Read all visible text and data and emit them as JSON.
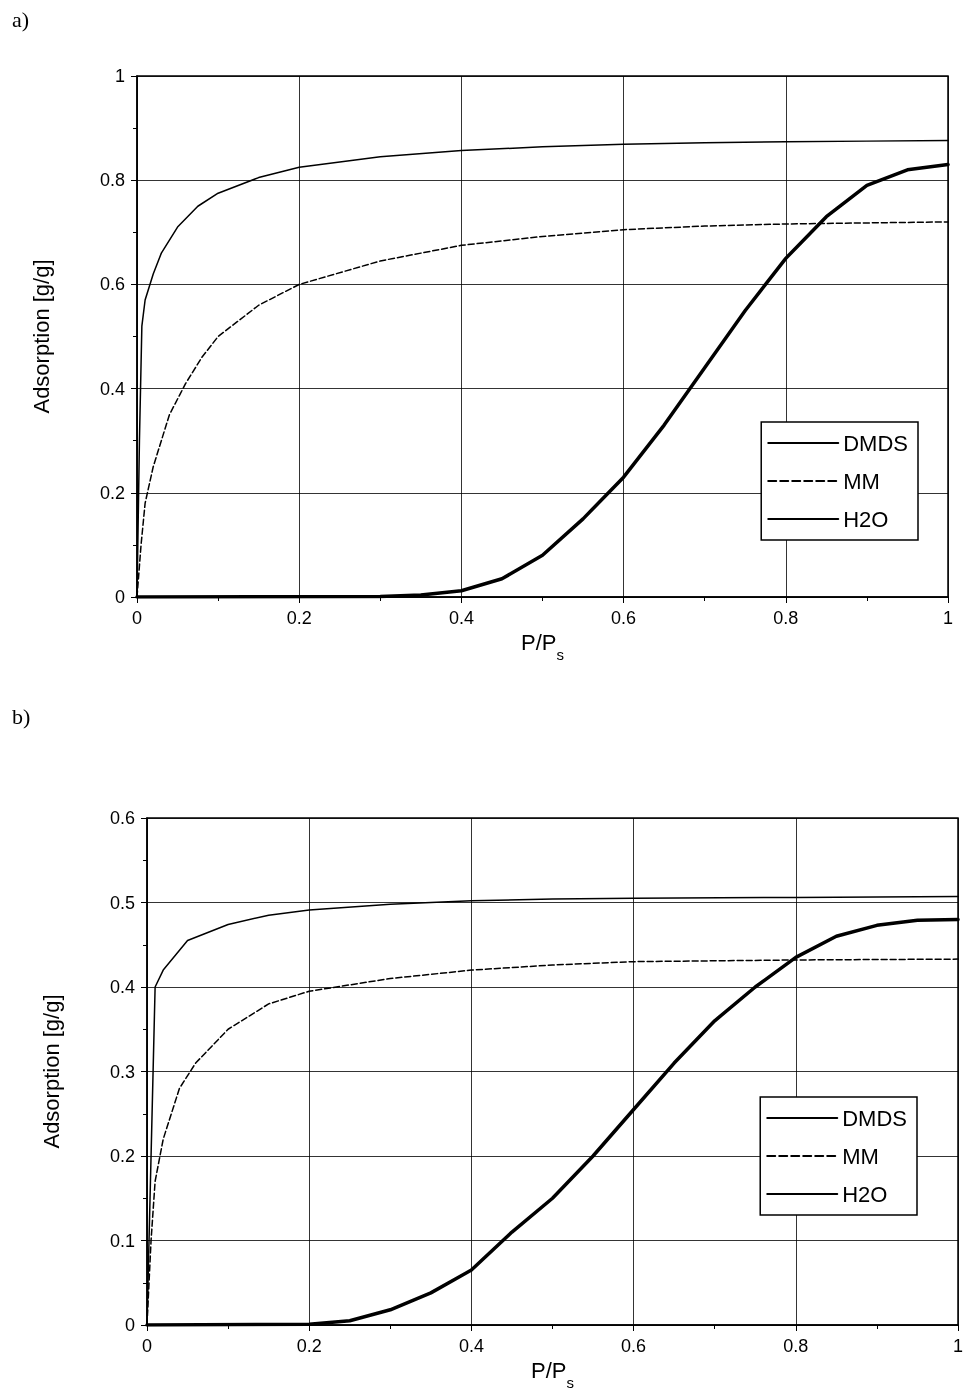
{
  "chart_data": [
    {
      "type": "line",
      "xlabel": "P/P$_{s}$",
      "ylabel": "Adsorption [g/g]",
      "annotations": [
        "a)"
      ],
      "xlim": [
        0,
        1
      ],
      "ylim": [
        0,
        1
      ],
      "xticks": [
        0,
        0.2,
        0.4,
        0.6,
        0.8,
        1
      ],
      "yticks": [
        0,
        0.2,
        0.4,
        0.6,
        0.8,
        1
      ],
      "grid": true,
      "legend": "bottom right",
      "marker": "none",
      "series": [
        {
          "name": "DMDS",
          "color": "#000000",
          "line_style": "solid",
          "x": [
            0,
            0.003,
            0.006,
            0.01,
            0.02,
            0.03,
            0.05,
            0.075,
            0.1,
            0.15,
            0.2,
            0.3,
            0.4,
            0.5,
            0.6,
            0.7,
            0.8,
            0.9,
            1
          ],
          "values": [
            0,
            0.3,
            0.52,
            0.57,
            0.62,
            0.66,
            0.71,
            0.75,
            0.775,
            0.805,
            0.825,
            0.845,
            0.857,
            0.864,
            0.869,
            0.872,
            0.874,
            0.875,
            0.876
          ]
        },
        {
          "name": "MM",
          "color": "#000000",
          "line_style": "dashed",
          "x": [
            0,
            0.005,
            0.01,
            0.02,
            0.04,
            0.06,
            0.08,
            0.1,
            0.15,
            0.2,
            0.3,
            0.4,
            0.5,
            0.6,
            0.7,
            0.8,
            0.9,
            1
          ],
          "values": [
            0,
            0.1,
            0.18,
            0.25,
            0.35,
            0.41,
            0.46,
            0.5,
            0.56,
            0.6,
            0.645,
            0.675,
            0.692,
            0.705,
            0.712,
            0.716,
            0.718,
            0.72
          ]
        },
        {
          "name": "H2O",
          "color": "#000000",
          "line_style": "solid",
          "x": [
            0,
            0.3,
            0.35,
            0.4,
            0.45,
            0.5,
            0.55,
            0.6,
            0.65,
            0.7,
            0.75,
            0.8,
            0.85,
            0.9,
            0.95,
            1
          ],
          "values": [
            0,
            0.001,
            0.004,
            0.012,
            0.035,
            0.08,
            0.15,
            0.23,
            0.33,
            0.44,
            0.55,
            0.65,
            0.73,
            0.79,
            0.82,
            0.83
          ]
        }
      ]
    },
    {
      "type": "line",
      "xlabel": "P/P$_{s}$",
      "ylabel": "Adsorption [g/g]",
      "annotations": [
        "b)"
      ],
      "xlim": [
        0,
        1
      ],
      "ylim": [
        0,
        0.6
      ],
      "xticks": [
        0,
        0.2,
        0.4,
        0.6,
        0.8,
        1
      ],
      "yticks": [
        0,
        0.1,
        0.2,
        0.3,
        0.4,
        0.5,
        0.6
      ],
      "grid": true,
      "legend": "bottom right",
      "marker": "none",
      "series": [
        {
          "name": "DMDS",
          "color": "#000000",
          "line_style": "solid",
          "x": [
            0,
            0.005,
            0.01,
            0.02,
            0.05,
            0.1,
            0.15,
            0.2,
            0.3,
            0.4,
            0.5,
            0.6,
            0.8,
            1
          ],
          "values": [
            0,
            0.2,
            0.4,
            0.42,
            0.455,
            0.474,
            0.485,
            0.491,
            0.498,
            0.502,
            0.504,
            0.505,
            0.506,
            0.507
          ]
        },
        {
          "name": "MM",
          "color": "#000000",
          "line_style": "dashed",
          "x": [
            0,
            0.005,
            0.01,
            0.02,
            0.04,
            0.06,
            0.1,
            0.15,
            0.2,
            0.3,
            0.4,
            0.5,
            0.6,
            0.8,
            1
          ],
          "values": [
            0,
            0.1,
            0.17,
            0.22,
            0.28,
            0.31,
            0.35,
            0.38,
            0.395,
            0.41,
            0.42,
            0.426,
            0.43,
            0.432,
            0.433
          ]
        },
        {
          "name": "H2O",
          "color": "#000000",
          "line_style": "solid",
          "x": [
            0,
            0.2,
            0.25,
            0.3,
            0.35,
            0.4,
            0.45,
            0.5,
            0.55,
            0.6,
            0.65,
            0.7,
            0.75,
            0.8,
            0.85,
            0.9,
            0.95,
            1
          ],
          "values": [
            0,
            0.001,
            0.005,
            0.018,
            0.038,
            0.065,
            0.11,
            0.15,
            0.2,
            0.255,
            0.31,
            0.36,
            0.4,
            0.435,
            0.46,
            0.473,
            0.479,
            0.48
          ]
        }
      ]
    }
  ]
}
